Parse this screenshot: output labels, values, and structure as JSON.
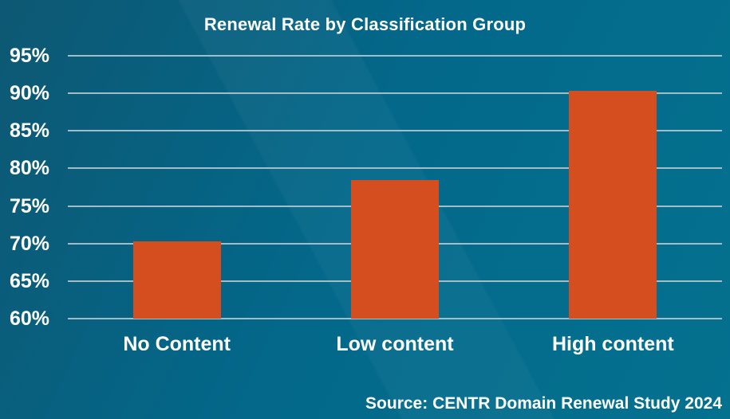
{
  "chart_data": {
    "type": "bar",
    "title": "Renewal Rate by Classification Group",
    "categories": [
      "No Content",
      "Low content",
      "High content"
    ],
    "values": [
      70.3,
      78.5,
      90.3
    ],
    "value_unit": "%",
    "xlabel": "",
    "ylabel": "",
    "ylim": [
      60,
      95
    ],
    "y_ticks": [
      60,
      65,
      70,
      75,
      80,
      85,
      90,
      95
    ],
    "y_tick_suffix": "%",
    "grid": true,
    "legend": false,
    "source": "Source: CENTR Domain Renewal Study 2024"
  },
  "colors": {
    "bar": "#d54e20",
    "gridline": "#b0c4cd",
    "text": "#ffffff",
    "background_from": "#0d5873",
    "background_mid": "#03688a",
    "background_to": "#04718f"
  }
}
